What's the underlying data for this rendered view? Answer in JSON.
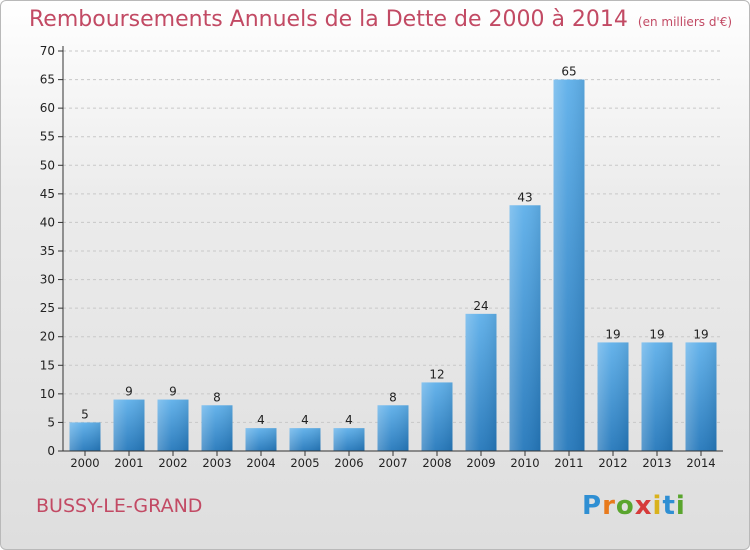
{
  "title": "Remboursements Annuels de la Dette de 2000 à 2014",
  "unit": "(en milliers d'€)",
  "commune": "BUSSY-LE-GRAND",
  "logo": {
    "letters": [
      "P",
      "r",
      "o",
      "x",
      "i",
      "t",
      "i"
    ]
  },
  "colors": {
    "title": "#c24a64",
    "bar_top": "#5fb0ea",
    "bar_bottom": "#2578bb",
    "axis": "#333333",
    "grid": "#c8c8c8"
  },
  "chart_data": {
    "type": "bar",
    "categories": [
      "2000",
      "2001",
      "2002",
      "2003",
      "2004",
      "2005",
      "2006",
      "2007",
      "2008",
      "2009",
      "2010",
      "2011",
      "2012",
      "2013",
      "2014"
    ],
    "values": [
      5,
      9,
      9,
      8,
      4,
      4,
      4,
      8,
      12,
      24,
      43,
      65,
      19,
      19,
      19
    ],
    "title": "Remboursements Annuels de la Dette de 2000 à 2014",
    "ylim": [
      0,
      70
    ],
    "yticks": [
      0,
      5,
      10,
      15,
      20,
      25,
      30,
      35,
      40,
      45,
      50,
      55,
      60,
      65,
      70
    ],
    "data_labels": true,
    "grid": true
  }
}
